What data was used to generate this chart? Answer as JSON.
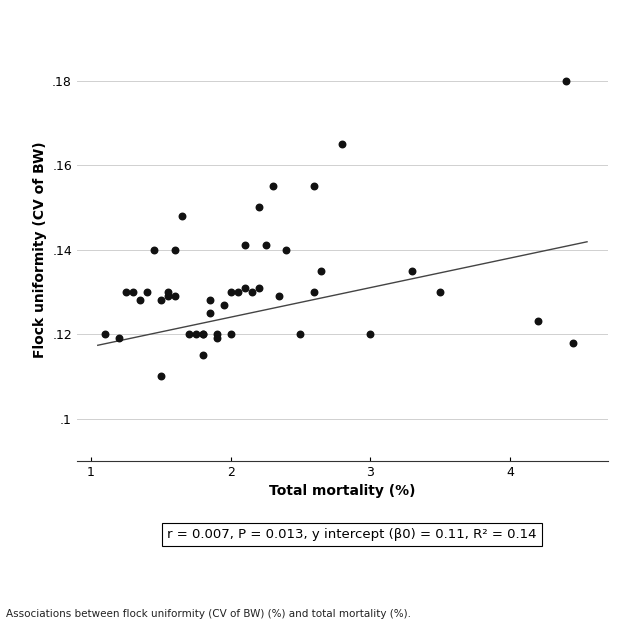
{
  "x": [
    1.1,
    1.2,
    1.25,
    1.3,
    1.35,
    1.4,
    1.45,
    1.5,
    1.5,
    1.55,
    1.55,
    1.6,
    1.6,
    1.65,
    1.7,
    1.75,
    1.8,
    1.8,
    1.8,
    1.85,
    1.85,
    1.9,
    1.9,
    1.95,
    2.0,
    2.0,
    2.05,
    2.1,
    2.1,
    2.15,
    2.2,
    2.2,
    2.25,
    2.3,
    2.35,
    2.4,
    2.5,
    2.6,
    2.6,
    2.65,
    2.8,
    3.0,
    3.3,
    3.5,
    4.2,
    4.4,
    4.45
  ],
  "y": [
    0.12,
    0.119,
    0.13,
    0.13,
    0.128,
    0.13,
    0.14,
    0.11,
    0.128,
    0.13,
    0.129,
    0.129,
    0.14,
    0.148,
    0.12,
    0.12,
    0.12,
    0.115,
    0.12,
    0.128,
    0.125,
    0.12,
    0.119,
    0.127,
    0.13,
    0.12,
    0.13,
    0.131,
    0.141,
    0.13,
    0.15,
    0.131,
    0.141,
    0.155,
    0.129,
    0.14,
    0.12,
    0.155,
    0.13,
    0.135,
    0.165,
    0.12,
    0.135,
    0.13,
    0.123,
    0.18,
    0.118
  ],
  "slope": 0.007,
  "intercept": 0.11,
  "r_squared": 0.14,
  "p_value": 0.013,
  "xlabel": "Total mortality (%)",
  "ylabel": "Flock uniformity (CV of BW)",
  "xlim": [
    0.9,
    4.7
  ],
  "ylim": [
    0.09,
    0.19
  ],
  "xticks": [
    1,
    2,
    3,
    4
  ],
  "yticks": [
    0.1,
    0.12,
    0.14,
    0.16,
    0.18
  ],
  "ytick_labels": [
    ".1",
    ".12",
    ".14",
    ".16",
    ".18"
  ],
  "xtick_labels": [
    "1",
    "2",
    "3",
    "4"
  ],
  "line_x_start": 1.05,
  "line_x_end": 4.55,
  "annotation_text": "r = 0.007, P = 0.013, y intercept (β0) = 0.11, R² = 0.14",
  "caption": "Associations between flock uniformity (CV of BW) (%) and total mortality (%).",
  "dot_color": "#111111",
  "line_color": "#444444",
  "grid_color": "#d0d0d0",
  "background_color": "#ffffff",
  "dot_size": 22,
  "annotation_fontsize": 9.5,
  "caption_fontsize": 7.5,
  "axis_label_fontsize": 10,
  "tick_fontsize": 9
}
